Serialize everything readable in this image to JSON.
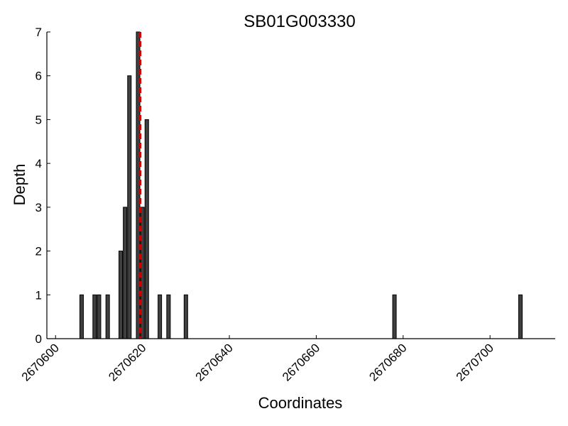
{
  "chart_data": {
    "type": "bar",
    "title": "SB01G003330",
    "xlabel": "Coordinates",
    "ylabel": "Depth",
    "xlim": [
      2670598,
      2670715
    ],
    "ylim": [
      0,
      7
    ],
    "x_ticks": [
      2670600,
      2670620,
      2670640,
      2670660,
      2670680,
      2670700
    ],
    "y_ticks": [
      0,
      1,
      2,
      3,
      4,
      5,
      6,
      7
    ],
    "grid": false,
    "bar_color": "#404040",
    "bar_edge_color": "#000000",
    "marker_color": "#cc0000",
    "marker_x": 2670619.5,
    "series": [
      {
        "x": [
          2670606,
          2670609,
          2670610,
          2670612,
          2670615,
          2670616,
          2670617,
          2670619,
          2670620,
          2670621,
          2670624,
          2670626,
          2670630,
          2670678,
          2670707
        ],
        "values": [
          1,
          1,
          1,
          1,
          2,
          3,
          6,
          7,
          3,
          5,
          1,
          1,
          1,
          1,
          1
        ]
      }
    ]
  }
}
